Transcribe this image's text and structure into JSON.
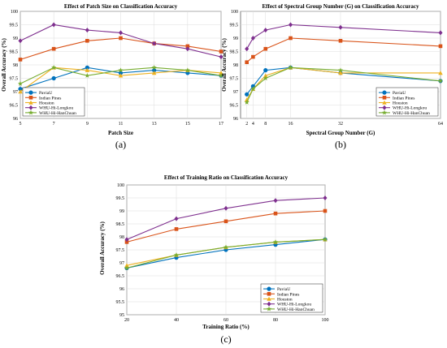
{
  "series_colors": [
    "#0072BD",
    "#D95319",
    "#EDB120",
    "#7E2F8E",
    "#77AC30"
  ],
  "chart_data": [
    {
      "type": "line",
      "title": "Effect of Patch Size on Classification Accuracy",
      "xlabel": "Patch Size",
      "ylabel": "Overall Accuracy (%)",
      "caption": "(a)",
      "x": [
        5,
        7,
        9,
        11,
        13,
        15,
        17
      ],
      "xlim": [
        5,
        17
      ],
      "xticks": [
        "5",
        "7",
        "9",
        "11",
        "13",
        "15",
        "17"
      ],
      "ylim": [
        96,
        100
      ],
      "yticks": [
        "96",
        "96.5",
        "97",
        "97.5",
        "98",
        "98.5",
        "99",
        "99.5",
        "100"
      ],
      "grid": true,
      "legend_position": "bottom-left",
      "series": [
        {
          "name": "PaviaU",
          "marker": "circle",
          "values": [
            97.1,
            97.5,
            97.9,
            97.7,
            97.8,
            97.7,
            97.6
          ]
        },
        {
          "name": "Indian Pines",
          "marker": "square",
          "values": [
            98.2,
            98.6,
            98.9,
            99.0,
            98.8,
            98.7,
            98.5
          ]
        },
        {
          "name": "Houston",
          "marker": "triangle",
          "values": [
            97.0,
            97.9,
            97.8,
            97.6,
            97.7,
            97.8,
            97.7
          ]
        },
        {
          "name": "WHU-Hi-Longkou",
          "marker": "diamond",
          "values": [
            98.9,
            99.5,
            99.3,
            99.2,
            98.8,
            98.6,
            98.3
          ]
        },
        {
          "name": "WHU-Hi-HanChuan",
          "marker": "star",
          "values": [
            97.3,
            97.9,
            97.6,
            97.8,
            97.9,
            97.8,
            97.6
          ]
        }
      ]
    },
    {
      "type": "line",
      "title": "Effect of Spectral Group Number (G) on Classification Accuracy",
      "xlabel": "Spectral Group Number (G)",
      "ylabel": "Overall Accuracy (%)",
      "caption": "(b)",
      "x": [
        2,
        4,
        8,
        16,
        32,
        64
      ],
      "xlim": [
        0,
        64
      ],
      "xticks": [
        "2",
        "4",
        "8",
        "16",
        "32",
        "64"
      ],
      "ylim": [
        96,
        100
      ],
      "yticks": [
        "96",
        "96.5",
        "97",
        "97.5",
        "98",
        "98.5",
        "99",
        "99.5",
        "100"
      ],
      "grid": true,
      "legend_position": "bottom-right",
      "series": [
        {
          "name": "PaviaU",
          "marker": "circle",
          "values": [
            96.9,
            97.2,
            97.8,
            97.9,
            97.7,
            97.4
          ]
        },
        {
          "name": "Indian Pines",
          "marker": "square",
          "values": [
            98.1,
            98.3,
            98.6,
            99.0,
            98.9,
            98.7
          ]
        },
        {
          "name": "Houston",
          "marker": "triangle",
          "values": [
            96.7,
            97.1,
            97.6,
            97.9,
            97.7,
            97.7
          ]
        },
        {
          "name": "WHU-Hi-Longkou",
          "marker": "diamond",
          "values": [
            98.6,
            99.0,
            99.3,
            99.5,
            99.4,
            99.2
          ]
        },
        {
          "name": "WHU-Hi-HanChuan",
          "marker": "star",
          "values": [
            96.6,
            97.1,
            97.5,
            97.9,
            97.8,
            97.4
          ]
        }
      ]
    },
    {
      "type": "line",
      "title": "Effect of Training Ratio on Classification Accuracy",
      "xlabel": "Training Ratio (%)",
      "ylabel": "Overall Accuracy (%)",
      "caption": "(c)",
      "x": [
        20,
        40,
        60,
        80,
        100
      ],
      "xlim": [
        20,
        100
      ],
      "xticks": [
        "20",
        "40",
        "60",
        "80",
        "100"
      ],
      "ylim": [
        95,
        100
      ],
      "yticks": [
        "95",
        "95.5",
        "96",
        "96.5",
        "97",
        "97.5",
        "98",
        "98.5",
        "99",
        "99.5",
        "100"
      ],
      "grid": true,
      "legend_position": "bottom-right",
      "series": [
        {
          "name": "PaviaU",
          "marker": "circle",
          "values": [
            96.8,
            97.2,
            97.5,
            97.7,
            97.9
          ]
        },
        {
          "name": "Indian Pines",
          "marker": "square",
          "values": [
            97.8,
            98.3,
            98.6,
            98.9,
            99.0
          ]
        },
        {
          "name": "Houston",
          "marker": "triangle",
          "values": [
            96.9,
            97.3,
            97.6,
            97.8,
            97.9
          ]
        },
        {
          "name": "WHU-Hi-Longkou",
          "marker": "diamond",
          "values": [
            97.9,
            98.7,
            99.1,
            99.4,
            99.5
          ]
        },
        {
          "name": "WHU-Hi-HanChuan",
          "marker": "star",
          "values": [
            96.8,
            97.3,
            97.6,
            97.8,
            97.9
          ]
        }
      ]
    }
  ]
}
